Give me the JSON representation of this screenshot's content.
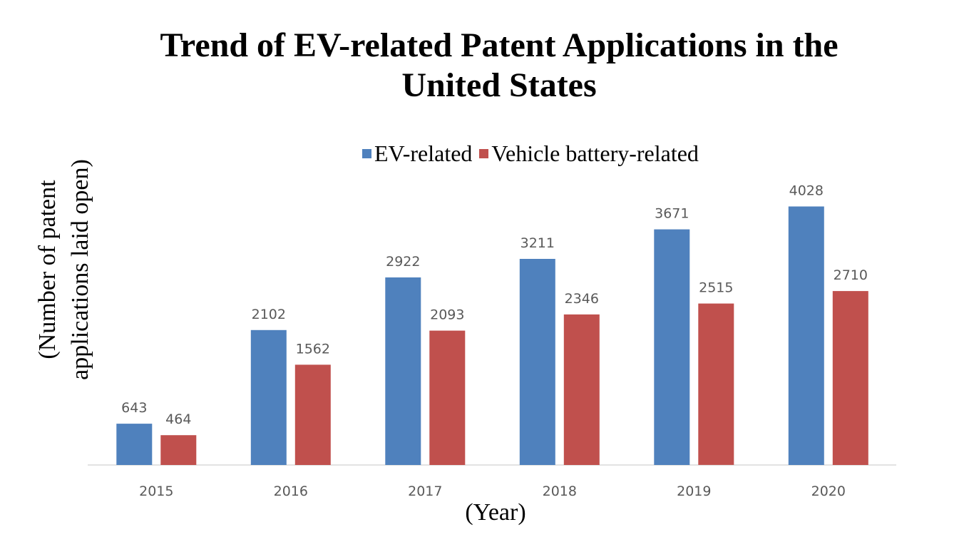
{
  "chart_data": {
    "type": "bar",
    "title_lines": [
      "Trend of EV-related Patent Applications in the",
      "United States"
    ],
    "ylabel_lines": [
      "(Number of patent",
      "applications laid open)"
    ],
    "xlabel": "(Year)",
    "categories": [
      "2015",
      "2016",
      "2017",
      "2018",
      "2019",
      "2020"
    ],
    "series": [
      {
        "name": "EV-related",
        "color": "#4F81BD",
        "values": [
          643,
          2102,
          2922,
          3211,
          3671,
          4028
        ]
      },
      {
        "name": "Vehicle battery-related",
        "color": "#C0504D",
        "values": [
          464,
          1562,
          2093,
          2346,
          2515,
          2710
        ]
      }
    ],
    "ylim": [
      0,
      4500
    ],
    "legend_position": "top",
    "grid": false,
    "data_labels": true
  }
}
